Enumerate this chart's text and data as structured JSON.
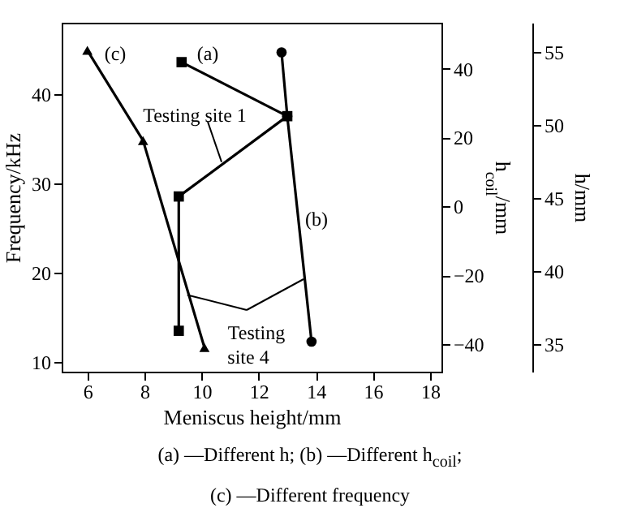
{
  "chart_data": {
    "type": "line",
    "xlabel": "Meniscus height/mm",
    "ylabel": "Frequency/kHz",
    "y2label": "h$_{coil}$/mm",
    "y3label": "h/mm",
    "xlim": [
      5.1,
      18.4
    ],
    "xticks": [
      6,
      8,
      10,
      12,
      14,
      16,
      18
    ],
    "ylim": [
      8.9,
      48
    ],
    "yticks": [
      10,
      20,
      30,
      40
    ],
    "y2lim": [
      -47.9,
      53.3
    ],
    "y2ticks": [
      -40,
      -20,
      0,
      20,
      40
    ],
    "y3lim": [
      33.1,
      57
    ],
    "y3ticks": [
      35,
      40,
      45,
      50,
      55
    ],
    "series": [
      {
        "name": "(a)",
        "color": "#000000",
        "axis": "y3",
        "marker": "square",
        "x": [
          9.3,
          13.0,
          9.2,
          9.2
        ],
        "values": [
          54.3,
          50.6,
          45.1,
          35.9
        ]
      },
      {
        "name": "(b)",
        "color": "#000000",
        "axis": "y2",
        "marker": "circle",
        "x": [
          12.8,
          13.0,
          13.85
        ],
        "values": [
          44.7,
          26.2,
          -39.2
        ]
      },
      {
        "name": "(c)",
        "color": "#000000",
        "marker": "triangle",
        "x": [
          6.0,
          7.95,
          10.1
        ],
        "values": [
          44.9,
          34.8,
          11.6
        ]
      }
    ],
    "annotations": [
      {
        "text": "Testing site 1",
        "x": 10.7,
        "y": 32.4
      },
      {
        "text": "Testing site 4",
        "x": 9.5,
        "y": 17.5
      },
      "(a) —Different h; (b) —Different h$_{coil}$;",
      "(c) —Different frequency"
    ],
    "grid": false
  }
}
